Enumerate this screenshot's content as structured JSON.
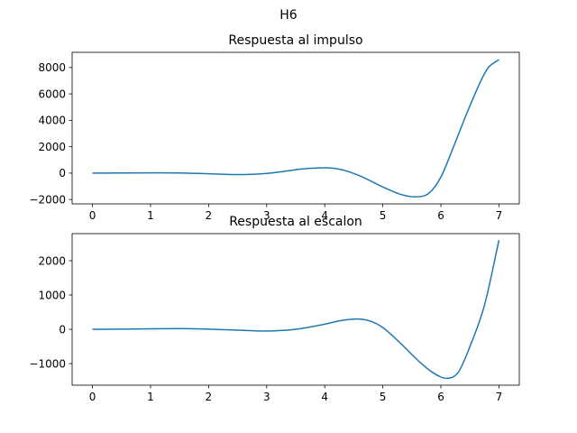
{
  "figure": {
    "suptitle": "H6"
  },
  "chart_data": [
    {
      "type": "line",
      "title": "Respuesta al impulso",
      "xlabel": "",
      "ylabel": "",
      "xlim": [
        -0.35,
        7.35
      ],
      "ylim": [
        -2330,
        9150
      ],
      "xticks": [
        0,
        1,
        2,
        3,
        4,
        5,
        6,
        7
      ],
      "yticks": [
        -2000,
        0,
        2000,
        4000,
        6000,
        8000
      ],
      "grid": false,
      "color": "#1f77b4",
      "series": [
        {
          "x": [
            0,
            0.5,
            1,
            1.5,
            2,
            2.5,
            3,
            3.3,
            3.6,
            4,
            4.3,
            4.6,
            5,
            5.3,
            5.55,
            5.8,
            6,
            6.2,
            6.5,
            6.8,
            7
          ],
          "values": [
            0,
            10,
            20,
            10,
            -50,
            -110,
            -20,
            130,
            310,
            400,
            250,
            -200,
            -1050,
            -1600,
            -1800,
            -1500,
            -300,
            1800,
            5100,
            7900,
            8600
          ]
        }
      ]
    },
    {
      "type": "line",
      "title": "Respuesta al escalon",
      "xlabel": "",
      "ylabel": "",
      "xlim": [
        -0.35,
        7.35
      ],
      "ylim": [
        -1630,
        2790
      ],
      "xticks": [
        0,
        1,
        2,
        3,
        4,
        5,
        6,
        7
      ],
      "yticks": [
        -1000,
        0,
        1000,
        2000
      ],
      "grid": false,
      "color": "#1f77b4",
      "series": [
        {
          "x": [
            0,
            0.5,
            1,
            1.5,
            2,
            2.5,
            3,
            3.5,
            4,
            4.3,
            4.55,
            4.8,
            5,
            5.3,
            5.6,
            5.85,
            6.1,
            6.3,
            6.5,
            6.75,
            7
          ],
          "values": [
            0,
            5,
            15,
            20,
            5,
            -25,
            -50,
            0,
            150,
            260,
            300,
            230,
            50,
            -400,
            -900,
            -1250,
            -1430,
            -1250,
            -500,
            700,
            2600
          ]
        }
      ]
    }
  ]
}
